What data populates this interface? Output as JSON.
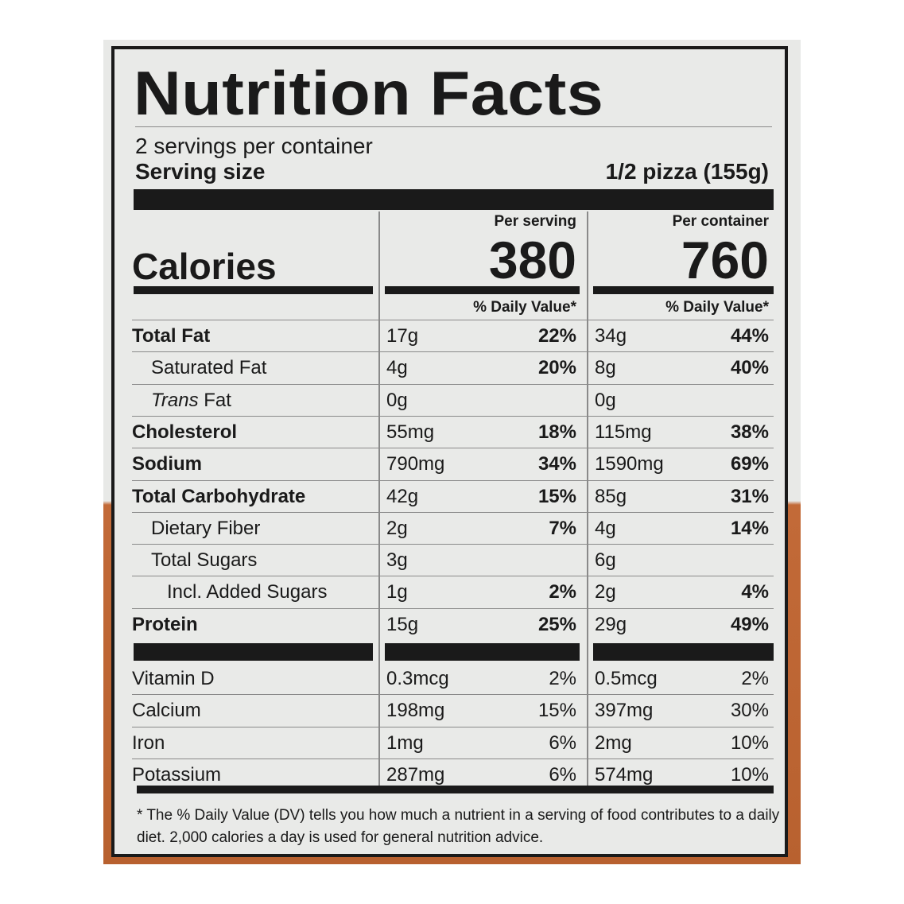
{
  "label": {
    "title": "Nutrition Facts",
    "servings_per_container": "2 servings per container",
    "serving_size_label": "Serving size",
    "serving_size_value": "1/2 pizza (155g)",
    "per_serving_label": "Per serving",
    "per_container_label": "Per container",
    "calories_label": "Calories",
    "calories_serving": "380",
    "calories_container": "760",
    "daily_value_header": "% Daily Value*",
    "rows": [
      {
        "name": "Total Fat",
        "bold": true,
        "indent": 0,
        "s_amt": "17g",
        "s_pct": "22%",
        "c_amt": "34g",
        "c_pct": "44%"
      },
      {
        "name": "Saturated Fat",
        "bold": false,
        "indent": 1,
        "s_amt": "4g",
        "s_pct": "20%",
        "c_amt": "8g",
        "c_pct": "40%"
      },
      {
        "name_italic": "Trans",
        "name": " Fat",
        "bold": false,
        "indent": 1,
        "s_amt": "0g",
        "s_pct": "",
        "c_amt": "0g",
        "c_pct": ""
      },
      {
        "name": "Cholesterol",
        "bold": true,
        "indent": 0,
        "s_amt": "55mg",
        "s_pct": "18%",
        "c_amt": "115mg",
        "c_pct": "38%"
      },
      {
        "name": "Sodium",
        "bold": true,
        "indent": 0,
        "s_amt": "790mg",
        "s_pct": "34%",
        "c_amt": "1590mg",
        "c_pct": "69%"
      },
      {
        "name": "Total Carbohydrate",
        "bold": true,
        "indent": 0,
        "s_amt": "42g",
        "s_pct": "15%",
        "c_amt": "85g",
        "c_pct": "31%"
      },
      {
        "name": "Dietary Fiber",
        "bold": false,
        "indent": 1,
        "s_amt": "2g",
        "s_pct": "7%",
        "c_amt": "4g",
        "c_pct": "14%"
      },
      {
        "name": "Total Sugars",
        "bold": false,
        "indent": 1,
        "s_amt": "3g",
        "s_pct": "",
        "c_amt": "6g",
        "c_pct": ""
      },
      {
        "name": "Incl. Added Sugars",
        "bold": false,
        "indent": 2,
        "s_amt": "1g",
        "s_pct": "2%",
        "c_amt": "2g",
        "c_pct": "4%"
      },
      {
        "name": "Protein",
        "bold": true,
        "indent": 0,
        "s_amt": "15g",
        "s_pct": "25%",
        "c_amt": "29g",
        "c_pct": "49%"
      }
    ],
    "vitamins": [
      {
        "name": "Vitamin D",
        "s_amt": "0.3mcg",
        "s_pct": "2%",
        "c_amt": "0.5mcg",
        "c_pct": "2%"
      },
      {
        "name": "Calcium",
        "s_amt": "198mg",
        "s_pct": "15%",
        "c_amt": "397mg",
        "c_pct": "30%"
      },
      {
        "name": "Iron",
        "s_amt": "1mg",
        "s_pct": "6%",
        "c_amt": "2mg",
        "c_pct": "10%"
      },
      {
        "name": "Potassium",
        "s_amt": "287mg",
        "s_pct": "6%",
        "c_amt": "574mg",
        "c_pct": "10%"
      }
    ],
    "footnote": "* The % Daily Value (DV) tells you how much a nutrient in a serving of food contributes to a daily diet. 2,000 calories a day is used for general nutrition advice."
  }
}
